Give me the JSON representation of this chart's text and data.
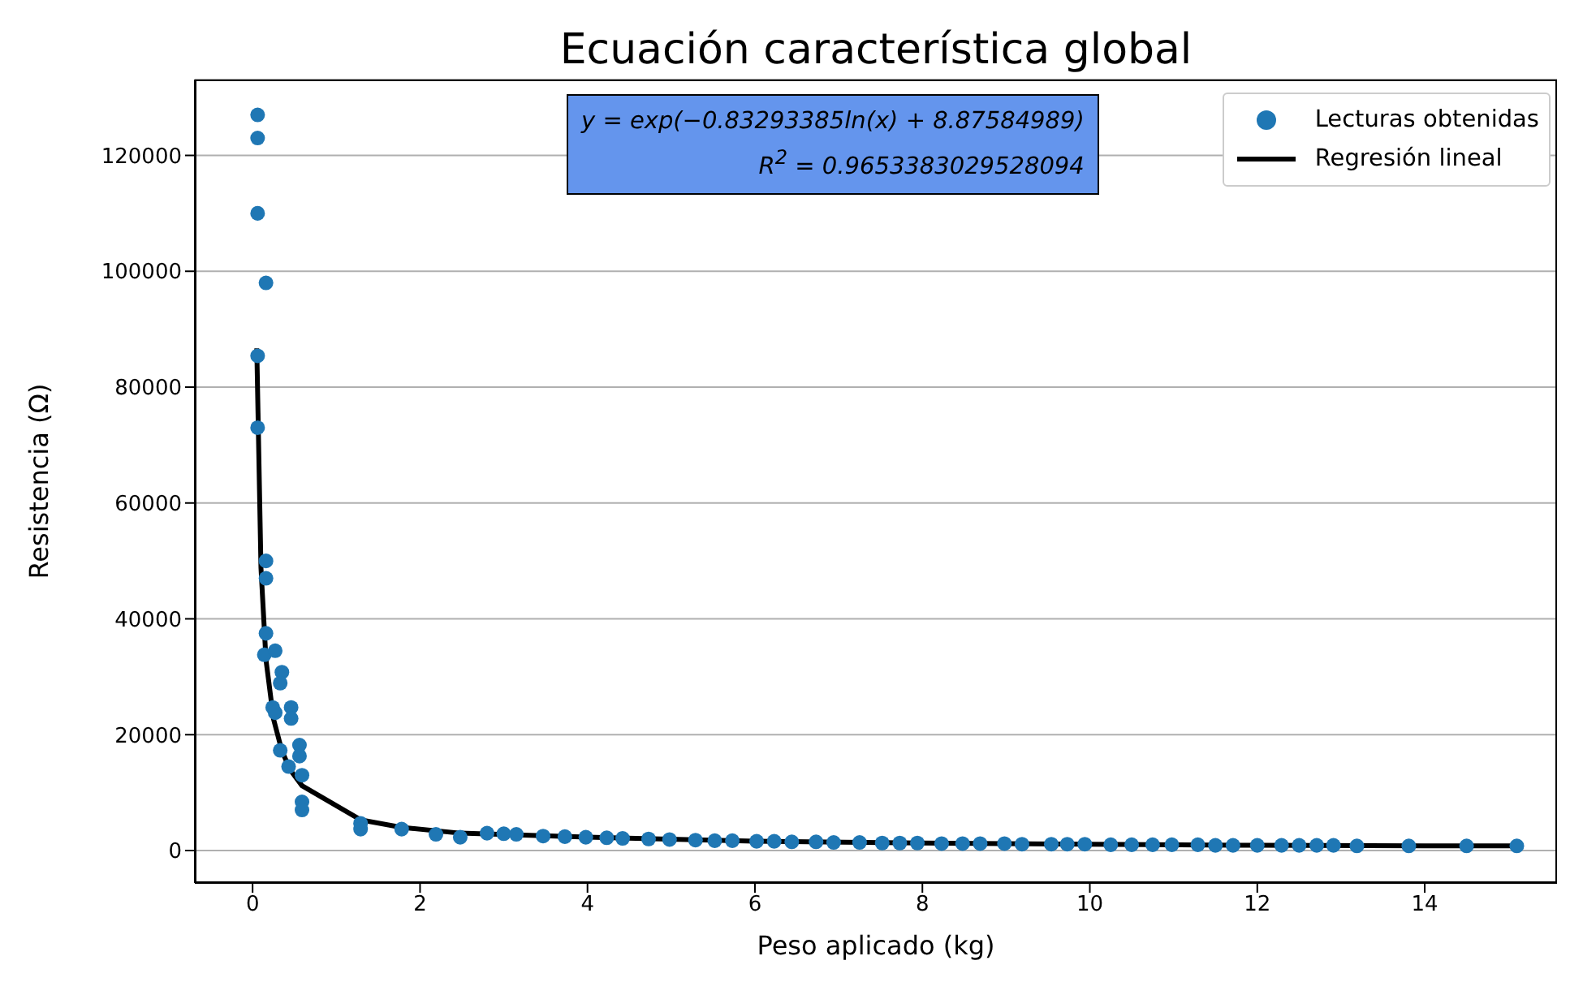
{
  "chart_data": {
    "type": "scatter",
    "title": "Ecuación característica global",
    "xlabel": "Peso aplicado (kg)",
    "ylabel": "Resistencia (Ω)",
    "annotations": [
      "y = exp(−0.83293385ln(x) + 8.87584989)",
      "R$^{2}$ = 0.9653383029528094"
    ],
    "xlim": [
      -0.69,
      15.58
    ],
    "xticks": [
      0,
      2,
      4,
      6,
      8,
      10,
      12,
      14
    ],
    "ylim": [
      -5600,
      133100
    ],
    "yticks": [
      0,
      20000,
      40000,
      60000,
      80000,
      100000,
      120000
    ],
    "grid": "y",
    "legend": "top right",
    "series": [
      {
        "name": "Lecturas obtenidas",
        "marker": "circle",
        "color": "#1f77b4",
        "x": [
          0.06,
          0.06,
          0.06,
          0.16,
          0.06,
          0.06,
          0.16,
          0.16,
          0.16,
          0.14,
          0.27,
          0.35,
          0.33,
          0.24,
          0.46,
          0.46,
          0.27,
          0.33,
          0.56,
          0.56,
          0.43,
          0.59,
          0.59,
          0.59,
          1.29,
          1.29,
          1.78,
          2.19,
          2.48,
          2.8,
          3.0,
          3.15,
          3.47,
          3.73,
          3.98,
          4.23,
          4.42,
          4.73,
          4.98,
          5.29,
          5.52,
          5.73,
          6.02,
          6.23,
          6.44,
          6.73,
          6.94,
          7.25,
          7.52,
          7.73,
          7.94,
          8.23,
          8.48,
          8.69,
          8.98,
          9.19,
          9.54,
          9.73,
          9.94,
          10.25,
          10.5,
          10.75,
          10.98,
          11.29,
          11.5,
          11.71,
          12.0,
          12.29,
          12.5,
          12.71,
          12.91,
          13.19,
          13.81,
          14.5,
          15.1
        ],
        "values": [
          127000,
          123000,
          110000,
          98000,
          85400,
          73000,
          50000,
          47000,
          37500,
          33800,
          34500,
          30800,
          28900,
          24700,
          24700,
          22800,
          23800,
          17300,
          18200,
          16300,
          14500,
          13000,
          8400,
          7000,
          4700,
          3700,
          3700,
          2800,
          2300,
          3000,
          2900,
          2800,
          2500,
          2400,
          2300,
          2200,
          2100,
          2000,
          1900,
          1800,
          1700,
          1700,
          1600,
          1600,
          1500,
          1500,
          1400,
          1400,
          1300,
          1300,
          1300,
          1200,
          1200,
          1200,
          1200,
          1100,
          1100,
          1100,
          1100,
          1000,
          1000,
          1000,
          1000,
          1000,
          900,
          900,
          900,
          900,
          900,
          900,
          900,
          800,
          800,
          800,
          800
        ]
      },
      {
        "name": "Regresión lineal",
        "type": "line",
        "marker": "none",
        "color": "#000000",
        "x": [
          0.05,
          0.1,
          0.16,
          0.25,
          0.35,
          0.45,
          0.59,
          1.29,
          1.78,
          2.48,
          4,
          6,
          8,
          10,
          12,
          14,
          15.1
        ],
        "values": [
          86700,
          48800,
          32900,
          22700,
          17200,
          13900,
          11200,
          5300,
          4000,
          3000,
          2300,
          1600,
          1300,
          1100,
          900,
          800,
          800
        ]
      }
    ]
  }
}
